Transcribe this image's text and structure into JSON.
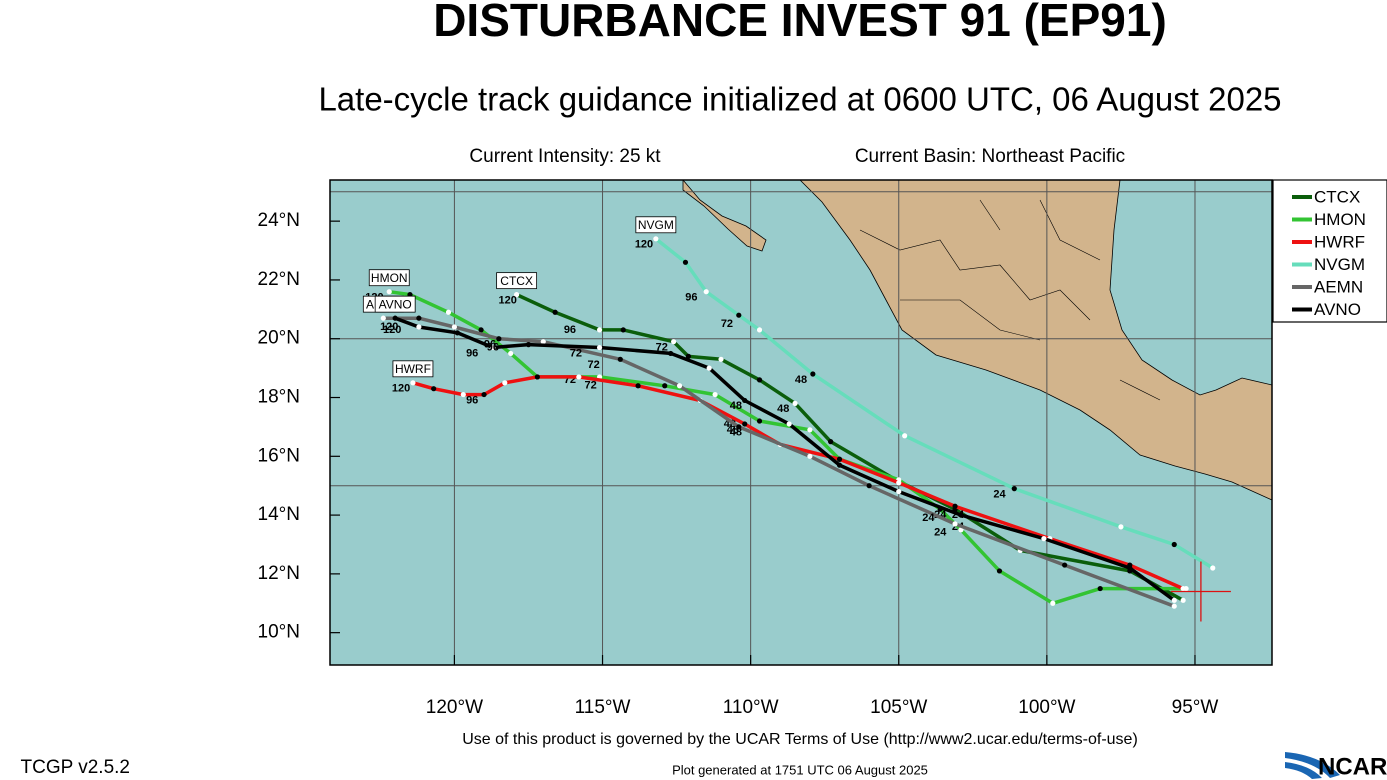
{
  "header": {
    "title": "DISTURBANCE INVEST 91 (EP91)",
    "subtitle": "Late-cycle track guidance initialized at 0600 UTC, 06 August 2025",
    "intensity": "Current Intensity: 25 kt",
    "basin": "Current Basin: Northeast Pacific"
  },
  "map": {
    "lon_range": [
      -124.2,
      -92.4
    ],
    "lat_range": [
      8.9,
      25.4
    ],
    "lon_ticks": [
      {
        "value": -120,
        "label": "120°W"
      },
      {
        "value": -115,
        "label": "115°W"
      },
      {
        "value": -110,
        "label": "110°W"
      },
      {
        "value": -105,
        "label": "105°W"
      },
      {
        "value": -100,
        "label": "100°W"
      },
      {
        "value": -95,
        "label": "95°W"
      }
    ],
    "lat_ticks": [
      {
        "value": 10,
        "label": "10°N"
      },
      {
        "value": 12,
        "label": "12°N"
      },
      {
        "value": 14,
        "label": "14°N"
      },
      {
        "value": 16,
        "label": "16°N"
      },
      {
        "value": 18,
        "label": "18°N"
      },
      {
        "value": 20,
        "label": "20°N"
      },
      {
        "value": 22,
        "label": "22°N"
      },
      {
        "value": 24,
        "label": "24°N"
      }
    ],
    "lat_grid": [
      15,
      20,
      25
    ],
    "grid": true,
    "storm_position": [
      -94.8,
      11.4
    ],
    "tracks": [
      {
        "name": "CTCX",
        "color": "#0b5e0b",
        "lon": [
          -95.4,
          -97.2,
          -100.9,
          -103.1,
          -105.1,
          -107.3,
          -108.5,
          -109.7,
          -111.0,
          -112.1,
          -112.6,
          -114.3,
          -115.1,
          -116.6,
          -117.9
        ],
        "lat": [
          11.1,
          12.1,
          12.8,
          14.2,
          15.2,
          16.5,
          17.8,
          18.6,
          19.3,
          19.4,
          19.9,
          20.3,
          20.3,
          20.9,
          21.5
        ],
        "hour_labels": [
          {
            "label": 120,
            "lon": -118.2,
            "lat": 21.3
          },
          {
            "label": 96,
            "lon": -116.1,
            "lat": 20.3
          },
          {
            "label": 72,
            "lon": -113.0,
            "lat": 19.7
          },
          {
            "label": 48,
            "lon": -108.9,
            "lat": 17.6
          },
          {
            "label": 24,
            "lon": -103.0,
            "lat": 13.6
          }
        ]
      },
      {
        "name": "HMON",
        "color": "#33c433",
        "lon": [
          -95.3,
          -98.2,
          -99.8,
          -101.6,
          -102.9,
          -103.6,
          -105.0,
          -107.0,
          -108.0,
          -109.7,
          -111.2,
          -112.9,
          -115.1,
          -117.2,
          -118.1,
          -119.1,
          -120.2,
          -121.5,
          -122.2
        ],
        "lat": [
          11.5,
          11.5,
          11.0,
          12.1,
          13.5,
          14.2,
          15.2,
          15.9,
          16.9,
          17.2,
          18.1,
          18.4,
          18.7,
          18.7,
          19.5,
          20.3,
          20.9,
          21.5,
          21.6
        ],
        "hour_labels": [
          {
            "label": 120,
            "lon": -122.7,
            "lat": 21.4
          },
          {
            "label": 96,
            "lon": -119.4,
            "lat": 19.5
          },
          {
            "label": 72,
            "lon": -116.1,
            "lat": 18.6
          },
          {
            "label": 48,
            "lon": -110.7,
            "lat": 17.1
          },
          {
            "label": 24,
            "lon": -103.6,
            "lat": 14.0
          }
        ]
      },
      {
        "name": "HWRF",
        "color": "#ee1111",
        "lon": [
          -95.4,
          -97.2,
          -99.9,
          -103.1,
          -105.0,
          -107.0,
          -109.0,
          -110.2,
          -111.7,
          -113.8,
          -115.8,
          -117.2,
          -118.3,
          -119.0,
          -119.7,
          -120.7,
          -121.4
        ],
        "lat": [
          11.5,
          12.3,
          13.2,
          14.3,
          15.1,
          15.9,
          16.4,
          17.1,
          17.9,
          18.4,
          18.7,
          18.7,
          18.5,
          18.1,
          18.1,
          18.3,
          18.5
        ],
        "hour_labels": [
          {
            "label": 120,
            "lon": -121.8,
            "lat": 18.3
          },
          {
            "label": 96,
            "lon": -119.4,
            "lat": 17.9
          },
          {
            "label": 72,
            "lon": -115.4,
            "lat": 18.4
          },
          {
            "label": 48,
            "lon": -110.6,
            "lat": 16.9
          },
          {
            "label": 24,
            "lon": -103.6,
            "lat": 13.4
          }
        ]
      },
      {
        "name": "NVGM",
        "color": "#66ddbb",
        "lon": [
          -94.4,
          -95.7,
          -97.5,
          -101.1,
          -104.8,
          -107.9,
          -109.7,
          -110.4,
          -111.5,
          -112.2,
          -113.2
        ],
        "lat": [
          12.2,
          13.0,
          13.6,
          14.9,
          16.7,
          18.8,
          20.3,
          20.8,
          21.6,
          22.6,
          23.4
        ],
        "hour_labels": [
          {
            "label": 120,
            "lon": -113.6,
            "lat": 23.2
          },
          {
            "label": 96,
            "lon": -112.0,
            "lat": 21.4
          },
          {
            "label": 72,
            "lon": -110.8,
            "lat": 20.5
          },
          {
            "label": 48,
            "lon": -108.3,
            "lat": 18.6
          },
          {
            "label": 24,
            "lon": -101.6,
            "lat": 14.7
          }
        ]
      },
      {
        "name": "AEMN",
        "color": "#666666",
        "lon": [
          -95.7,
          -99.4,
          -103.1,
          -106.0,
          -108.0,
          -110.4,
          -112.4,
          -114.4,
          -117.0,
          -118.5,
          -120.0,
          -121.2,
          -122.4
        ],
        "lat": [
          10.9,
          12.3,
          13.7,
          15.0,
          16.0,
          17.0,
          18.4,
          19.3,
          19.9,
          20.0,
          20.4,
          20.7,
          20.7
        ],
        "hour_labels": [
          {
            "label": 120,
            "lon": -122.2,
            "lat": 20.4
          },
          {
            "label": 96,
            "lon": -118.8,
            "lat": 19.8
          },
          {
            "label": 72,
            "lon": -115.3,
            "lat": 19.1
          },
          {
            "label": 48,
            "lon": -110.5,
            "lat": 16.8
          },
          {
            "label": 24,
            "lon": -104.0,
            "lat": 13.9
          }
        ]
      },
      {
        "name": "AVNO",
        "color": "#000000",
        "lon": [
          -95.7,
          -97.2,
          -100.1,
          -102.9,
          -105.0,
          -107.0,
          -108.7,
          -110.2,
          -111.4,
          -112.7,
          -115.1,
          -117.5,
          -118.7,
          -119.9,
          -121.2,
          -122.0
        ],
        "lat": [
          11.1,
          12.2,
          13.2,
          14.0,
          14.8,
          15.7,
          17.1,
          17.9,
          19.0,
          19.5,
          19.7,
          19.8,
          19.7,
          20.2,
          20.4,
          20.7
        ],
        "hour_labels": [
          {
            "label": 120,
            "lon": -122.1,
            "lat": 20.3
          },
          {
            "label": 96,
            "lon": -118.7,
            "lat": 19.7
          },
          {
            "label": 72,
            "lon": -115.9,
            "lat": 19.5
          },
          {
            "label": 48,
            "lon": -110.5,
            "lat": 17.7
          },
          {
            "label": 24,
            "lon": -103.0,
            "lat": 14.0
          }
        ]
      }
    ]
  },
  "footer": {
    "terms": "Use of this product is governed by the UCAR Terms of Use (http://www2.ucar.edu/terms-of-use)",
    "version": "TCGP v2.5.2",
    "generated": "Plot generated at 1751 UTC   06 August 2025",
    "logo": "NCAR"
  }
}
